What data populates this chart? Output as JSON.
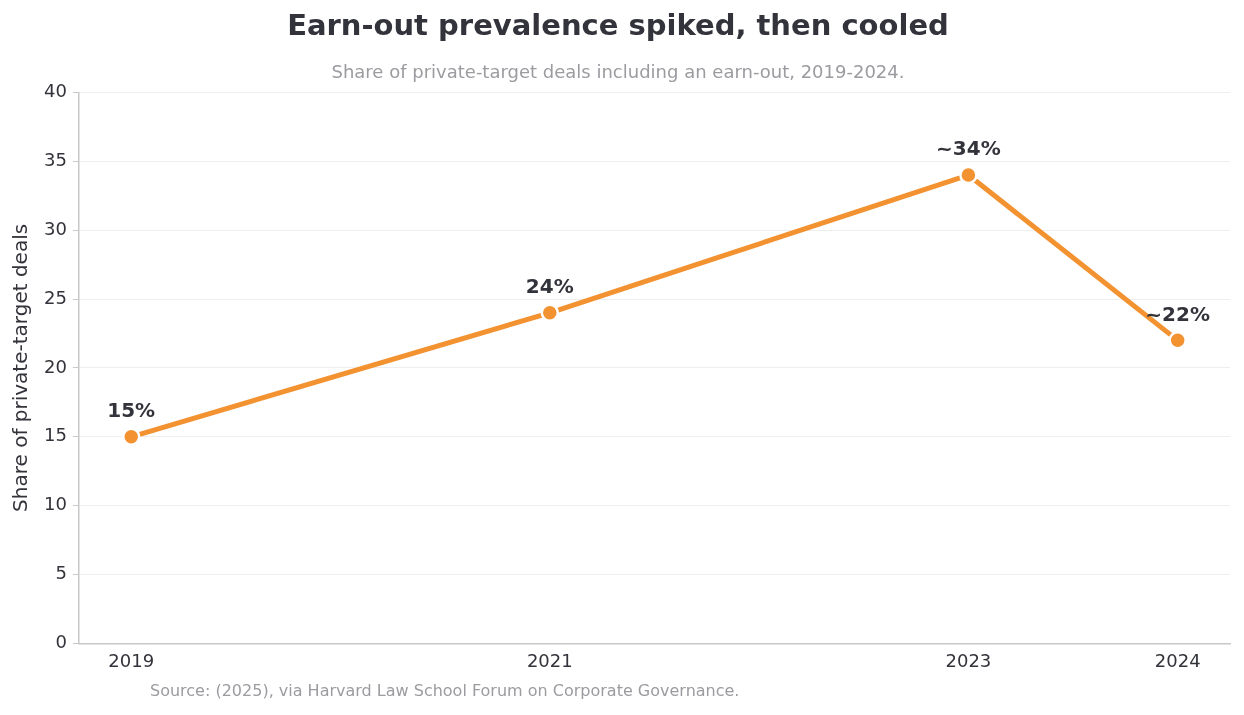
{
  "chart_data": {
    "type": "line",
    "title": "Earn-out prevalence spiked, then cooled",
    "subtitle": "Share of private-target deals including an earn-out, 2019-2024.",
    "ylabel": "Share of private-target deals",
    "x": [
      2019,
      2021,
      2023,
      2024
    ],
    "series": [
      {
        "color": "#f39230",
        "values": [
          15,
          24,
          34,
          22
        ],
        "value_labels": [
          "15%",
          "24%",
          "~34%",
          "~22%"
        ]
      }
    ],
    "xlim": [
      2018.75,
      2024.25
    ],
    "xticks": [
      2019,
      2021,
      2023,
      2024
    ],
    "ylim": [
      0,
      40
    ],
    "yticks": [
      0,
      5,
      10,
      15,
      20,
      25,
      30,
      35,
      40
    ],
    "grid": "y",
    "legend": false,
    "marker": "circle",
    "line_style": "solid",
    "annotations": [
      "Source: (2025), via Harvard Law School Forum on Corporate Governance."
    ]
  }
}
